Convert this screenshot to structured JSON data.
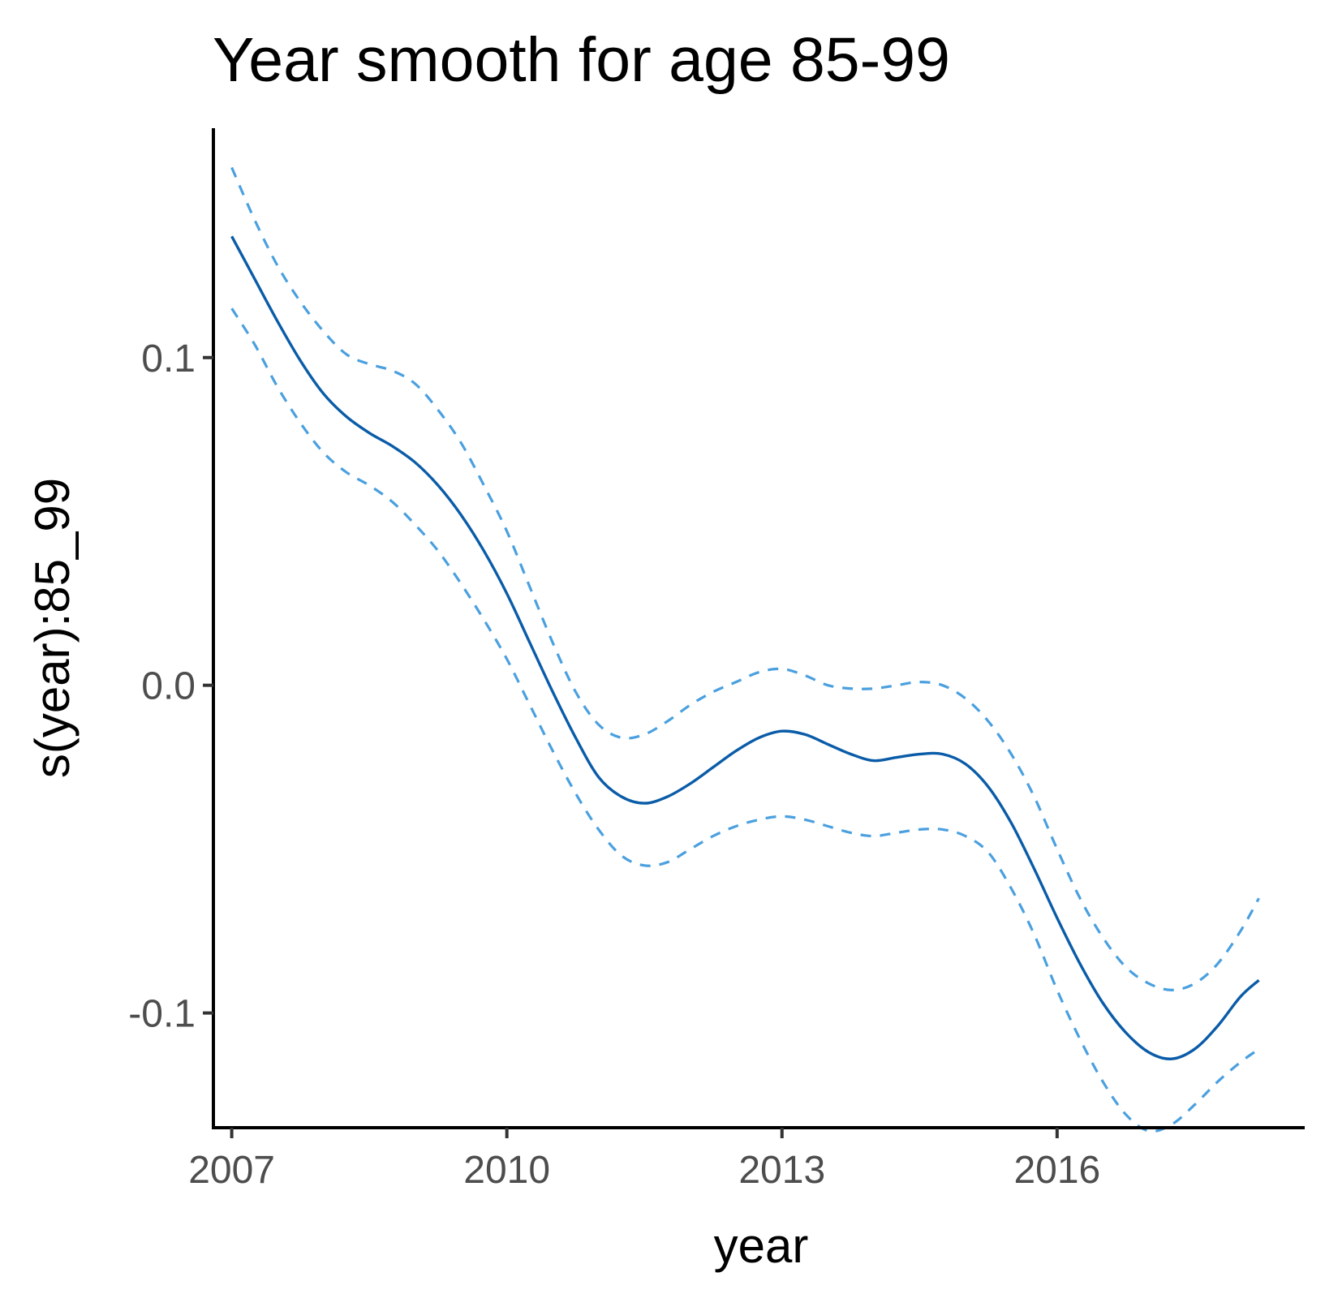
{
  "chart_data": {
    "type": "line",
    "title": "Year smooth for age 85-99",
    "xlabel": "year",
    "ylabel": "s(year):85_99",
    "xlim": [
      2006.8,
      2018.7
    ],
    "ylim": [
      -0.135,
      0.17
    ],
    "x_ticks": [
      {
        "value": 2007,
        "label": "2007"
      },
      {
        "value": 2010,
        "label": "2010"
      },
      {
        "value": 2013,
        "label": "2013"
      },
      {
        "value": 2016,
        "label": "2016"
      }
    ],
    "y_ticks": [
      {
        "value": 0.1,
        "label": "0.1"
      },
      {
        "value": 0.0,
        "label": "0.0"
      },
      {
        "value": -0.1,
        "label": "-0.1"
      }
    ],
    "grid": false,
    "legend": "none",
    "x": [
      2007.0,
      2007.25,
      2007.5,
      2007.75,
      2008.0,
      2008.25,
      2008.5,
      2008.75,
      2009.0,
      2009.25,
      2009.5,
      2009.75,
      2010.0,
      2010.25,
      2010.5,
      2010.75,
      2011.0,
      2011.25,
      2011.5,
      2011.75,
      2012.0,
      2012.25,
      2012.5,
      2012.75,
      2013.0,
      2013.25,
      2013.5,
      2013.75,
      2014.0,
      2014.25,
      2014.5,
      2014.75,
      2015.0,
      2015.25,
      2015.5,
      2015.75,
      2016.0,
      2016.25,
      2016.5,
      2016.75,
      2017.0,
      2017.25,
      2017.5,
      2017.75,
      2018.0,
      2018.2
    ],
    "series": [
      {
        "role": "estimate",
        "color": "#0a5ca8",
        "dash": "solid",
        "values": [
          0.137,
          0.124,
          0.111,
          0.099,
          0.089,
          0.082,
          0.077,
          0.073,
          0.068,
          0.061,
          0.052,
          0.041,
          0.028,
          0.013,
          -0.002,
          -0.016,
          -0.028,
          -0.034,
          -0.036,
          -0.034,
          -0.03,
          -0.025,
          -0.02,
          -0.016,
          -0.014,
          -0.015,
          -0.018,
          -0.021,
          -0.023,
          -0.022,
          -0.021,
          -0.021,
          -0.024,
          -0.031,
          -0.042,
          -0.056,
          -0.071,
          -0.085,
          -0.097,
          -0.106,
          -0.112,
          -0.114,
          -0.111,
          -0.104,
          -0.095,
          -0.09
        ]
      },
      {
        "role": "upper",
        "color": "#4aa0df",
        "dash": "dashed",
        "values": [
          0.158,
          0.142,
          0.128,
          0.117,
          0.108,
          0.101,
          0.098,
          0.096,
          0.092,
          0.084,
          0.074,
          0.061,
          0.047,
          0.03,
          0.013,
          -0.002,
          -0.012,
          -0.016,
          -0.015,
          -0.011,
          -0.006,
          -0.002,
          0.001,
          0.004,
          0.005,
          0.003,
          0.0,
          -0.001,
          -0.001,
          0.0,
          0.001,
          0.0,
          -0.004,
          -0.011,
          -0.021,
          -0.034,
          -0.05,
          -0.065,
          -0.077,
          -0.086,
          -0.091,
          -0.093,
          -0.091,
          -0.085,
          -0.075,
          -0.065
        ]
      },
      {
        "role": "lower",
        "color": "#4aa0df",
        "dash": "dashed",
        "values": [
          0.115,
          0.104,
          0.091,
          0.08,
          0.071,
          0.065,
          0.061,
          0.056,
          0.049,
          0.041,
          0.031,
          0.02,
          0.008,
          -0.006,
          -0.02,
          -0.033,
          -0.044,
          -0.052,
          -0.055,
          -0.054,
          -0.05,
          -0.046,
          -0.043,
          -0.041,
          -0.04,
          -0.041,
          -0.043,
          -0.045,
          -0.046,
          -0.045,
          -0.044,
          -0.044,
          -0.046,
          -0.051,
          -0.062,
          -0.076,
          -0.093,
          -0.108,
          -0.121,
          -0.131,
          -0.136,
          -0.134,
          -0.128,
          -0.121,
          -0.115,
          -0.111
        ]
      }
    ]
  }
}
